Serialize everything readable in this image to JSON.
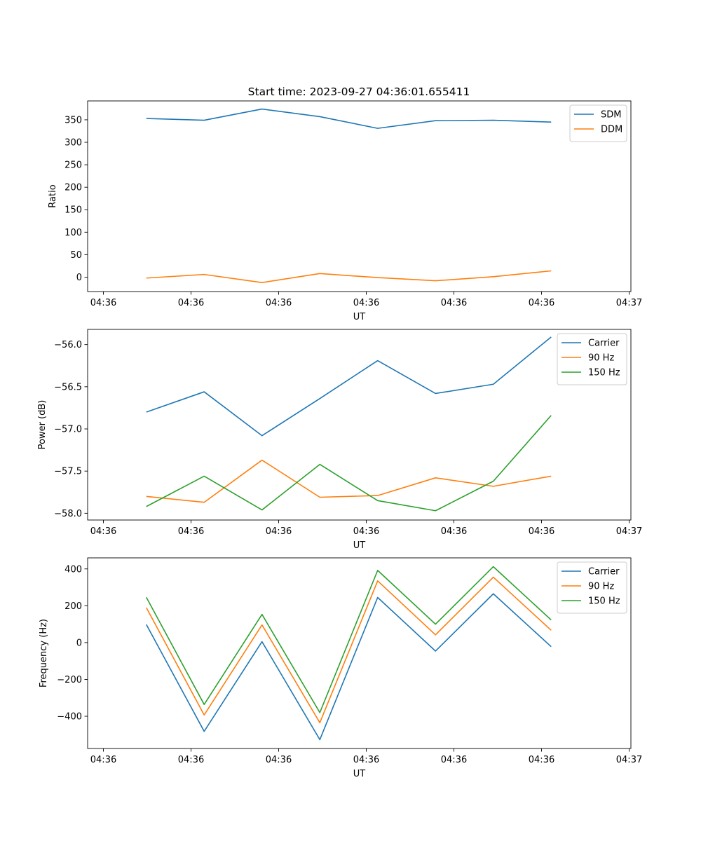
{
  "title": "Start time: 2023-09-27 04:36:01.655411",
  "colors": {
    "blue": "#1f77b4",
    "orange": "#ff7f0e",
    "green": "#2ca02c"
  },
  "chart_data": [
    {
      "type": "line",
      "xlabel": "UT",
      "ylabel": "Ratio",
      "x_ticks": [
        "04:36",
        "04:36",
        "04:36",
        "04:36",
        "04:36",
        "04:36",
        "04:37"
      ],
      "x_tick_values": [
        0,
        1,
        2,
        3,
        4,
        5,
        6
      ],
      "xlim": [
        -0.18,
        6.02
      ],
      "x": [
        0.49,
        1.15,
        1.81,
        2.47,
        3.13,
        3.79,
        4.45,
        5.11
      ],
      "ylim": [
        -32,
        392
      ],
      "y_ticks": [
        "0",
        "50",
        "100",
        "150",
        "200",
        "250",
        "300",
        "350"
      ],
      "y_tick_values": [
        0,
        50,
        100,
        150,
        200,
        250,
        300,
        350
      ],
      "legend": "top-right",
      "series": [
        {
          "name": "SDM",
          "color": "#1f77b4",
          "values": [
            353,
            349,
            374,
            357,
            331,
            348,
            349,
            345
          ]
        },
        {
          "name": "DDM",
          "color": "#ff7f0e",
          "values": [
            -2,
            6,
            -12,
            8,
            -1,
            -8,
            1,
            14
          ]
        }
      ]
    },
    {
      "type": "line",
      "xlabel": "UT",
      "ylabel": "Power (dB)",
      "x_ticks": [
        "04:36",
        "04:36",
        "04:36",
        "04:36",
        "04:36",
        "04:36",
        "04:37"
      ],
      "x_tick_values": [
        0,
        1,
        2,
        3,
        4,
        5,
        6
      ],
      "xlim": [
        -0.18,
        6.02
      ],
      "x": [
        0.49,
        1.15,
        1.81,
        2.47,
        3.13,
        3.79,
        4.45,
        5.11
      ],
      "ylim": [
        -58.08,
        -55.82
      ],
      "y_ticks": [
        "−56.0",
        "−56.5",
        "−57.0",
        "−57.5",
        "−58.0"
      ],
      "y_tick_values": [
        -56.0,
        -56.5,
        -57.0,
        -57.5,
        -58.0
      ],
      "legend": "top-right",
      "series": [
        {
          "name": "Carrier",
          "color": "#1f77b4",
          "values": [
            -56.8,
            -56.56,
            -57.08,
            -56.64,
            -56.19,
            -56.58,
            -56.47,
            -55.91
          ]
        },
        {
          "name": "90 Hz",
          "color": "#ff7f0e",
          "values": [
            -57.8,
            -57.87,
            -57.37,
            -57.81,
            -57.79,
            -57.58,
            -57.68,
            -57.56
          ]
        },
        {
          "name": "150 Hz",
          "color": "#2ca02c",
          "values": [
            -57.92,
            -57.56,
            -57.96,
            -57.42,
            -57.85,
            -57.97,
            -57.62,
            -56.84
          ]
        }
      ]
    },
    {
      "type": "line",
      "xlabel": "UT",
      "ylabel": "Frequency (Hz)",
      "x_ticks": [
        "04:36",
        "04:36",
        "04:36",
        "04:36",
        "04:36",
        "04:36",
        "04:37"
      ],
      "x_tick_values": [
        0,
        1,
        2,
        3,
        4,
        5,
        6
      ],
      "xlim": [
        -0.18,
        6.02
      ],
      "x": [
        0.49,
        1.15,
        1.81,
        2.47,
        3.13,
        3.79,
        4.45,
        5.11
      ],
      "ylim": [
        -575,
        460
      ],
      "y_ticks": [
        "400",
        "200",
        "0",
        "−200",
        "−400"
      ],
      "y_tick_values": [
        400,
        200,
        0,
        -200,
        -400
      ],
      "legend": "top-right",
      "series": [
        {
          "name": "Carrier",
          "color": "#1f77b4",
          "values": [
            98,
            -482,
            5,
            -527,
            245,
            -46,
            265,
            -22
          ]
        },
        {
          "name": "90 Hz",
          "color": "#ff7f0e",
          "values": [
            190,
            -393,
            96,
            -435,
            335,
            42,
            355,
            67
          ]
        },
        {
          "name": "150 Hz",
          "color": "#2ca02c",
          "values": [
            246,
            -336,
            153,
            -380,
            392,
            100,
            412,
            123
          ]
        }
      ]
    }
  ]
}
